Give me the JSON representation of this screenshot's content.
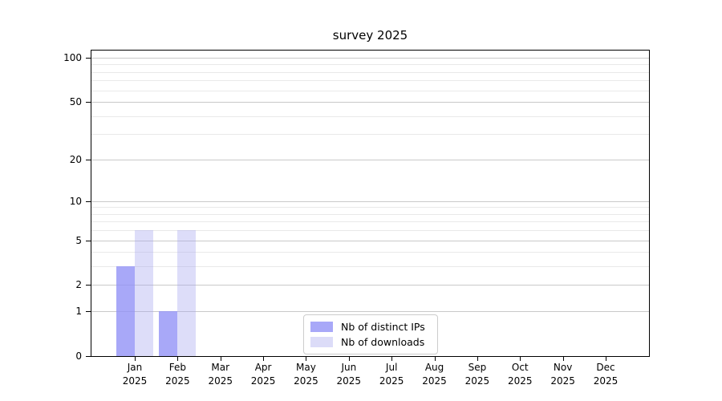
{
  "chart_data": {
    "type": "bar",
    "title": "survey 2025",
    "categories": [
      {
        "month": "Jan",
        "year": "2025"
      },
      {
        "month": "Feb",
        "year": "2025"
      },
      {
        "month": "Mar",
        "year": "2025"
      },
      {
        "month": "Apr",
        "year": "2025"
      },
      {
        "month": "May",
        "year": "2025"
      },
      {
        "month": "Jun",
        "year": "2025"
      },
      {
        "month": "Jul",
        "year": "2025"
      },
      {
        "month": "Aug",
        "year": "2025"
      },
      {
        "month": "Sep",
        "year": "2025"
      },
      {
        "month": "Oct",
        "year": "2025"
      },
      {
        "month": "Nov",
        "year": "2025"
      },
      {
        "month": "Dec",
        "year": "2025"
      }
    ],
    "series": [
      {
        "name": "Nb of distinct IPs",
        "color": "#a8a8f8",
        "bar_fill": "rgba(146,146,246,0.8)",
        "values": [
          3,
          1,
          0,
          0,
          0,
          0,
          0,
          0,
          0,
          0,
          0,
          0
        ]
      },
      {
        "name": "Nb of downloads",
        "color": "#dcdcf8",
        "bar_fill": "rgba(165,165,240,0.38)",
        "values": [
          6,
          6,
          0,
          0,
          0,
          0,
          0,
          0,
          0,
          0,
          0,
          0
        ]
      }
    ],
    "yscale": "log1p",
    "ylim": [
      0,
      112
    ],
    "y_major_ticks": [
      0,
      1,
      2,
      5,
      10,
      20,
      50,
      100
    ],
    "y_minor_ticks": [
      3,
      4,
      6,
      7,
      8,
      9,
      30,
      40,
      60,
      70,
      80,
      90
    ],
    "grid": true,
    "legend_position": "lower center inside"
  },
  "colors": {
    "major_grid": "#c9c9c9",
    "minor_grid": "#e9e9e9",
    "axis": "#000000",
    "background": "#ffffff"
  }
}
